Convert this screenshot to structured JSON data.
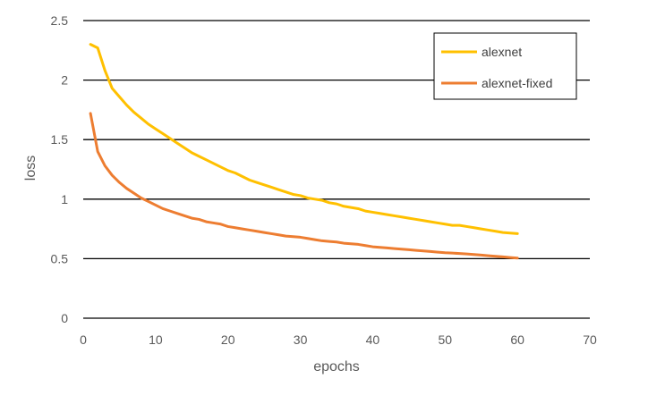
{
  "chart_data": {
    "type": "line",
    "title": "",
    "xlabel": "epochs",
    "ylabel": "loss",
    "xlim": [
      0,
      70
    ],
    "ylim": [
      0,
      2.5
    ],
    "xticks": [
      0,
      10,
      20,
      30,
      40,
      50,
      60,
      70
    ],
    "yticks": [
      0,
      0.5,
      1,
      1.5,
      2,
      2.5
    ],
    "ytick_labels": [
      "0",
      "0.5",
      "1",
      "1.5",
      "2",
      "2.5"
    ],
    "grid": "horizontal",
    "legend": "top-right",
    "x": [
      1,
      2,
      3,
      4,
      5,
      6,
      7,
      8,
      9,
      10,
      11,
      12,
      13,
      14,
      15,
      16,
      17,
      18,
      19,
      20,
      21,
      22,
      23,
      24,
      25,
      26,
      27,
      28,
      29,
      30,
      31,
      32,
      33,
      34,
      35,
      36,
      37,
      38,
      39,
      40,
      41,
      42,
      43,
      44,
      45,
      46,
      47,
      48,
      49,
      50,
      51,
      52,
      53,
      54,
      55,
      56,
      57,
      58,
      59,
      60
    ],
    "series": [
      {
        "name": "alexnet",
        "color": "#FFC000",
        "values": [
          2.3,
          2.27,
          2.08,
          1.93,
          1.86,
          1.79,
          1.73,
          1.68,
          1.63,
          1.59,
          1.55,
          1.51,
          1.47,
          1.43,
          1.39,
          1.36,
          1.33,
          1.3,
          1.27,
          1.24,
          1.22,
          1.19,
          1.16,
          1.14,
          1.12,
          1.1,
          1.08,
          1.06,
          1.04,
          1.03,
          1.01,
          1.0,
          0.99,
          0.97,
          0.96,
          0.94,
          0.93,
          0.92,
          0.9,
          0.89,
          0.88,
          0.87,
          0.86,
          0.85,
          0.84,
          0.83,
          0.82,
          0.81,
          0.8,
          0.79,
          0.78,
          0.78,
          0.77,
          0.76,
          0.75,
          0.74,
          0.73,
          0.72,
          0.715,
          0.71
        ]
      },
      {
        "name": "alexnet-fixed",
        "color": "#ED7D31",
        "values": [
          1.72,
          1.4,
          1.28,
          1.2,
          1.14,
          1.09,
          1.05,
          1.01,
          0.98,
          0.95,
          0.92,
          0.9,
          0.88,
          0.86,
          0.84,
          0.83,
          0.81,
          0.8,
          0.79,
          0.77,
          0.76,
          0.75,
          0.74,
          0.73,
          0.72,
          0.71,
          0.7,
          0.69,
          0.685,
          0.68,
          0.67,
          0.66,
          0.65,
          0.645,
          0.64,
          0.63,
          0.625,
          0.62,
          0.61,
          0.6,
          0.595,
          0.59,
          0.585,
          0.58,
          0.575,
          0.57,
          0.565,
          0.56,
          0.555,
          0.55,
          0.547,
          0.543,
          0.54,
          0.535,
          0.53,
          0.525,
          0.52,
          0.515,
          0.51,
          0.505
        ]
      }
    ]
  }
}
